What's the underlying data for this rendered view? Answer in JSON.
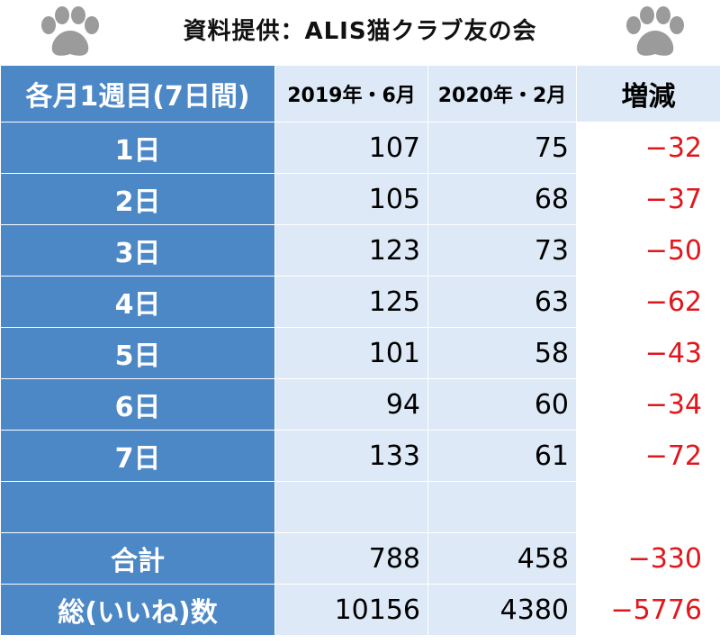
{
  "header": {
    "title": "資料提供：ALIS猫クラブ友の会",
    "left_icon": "paw-icon",
    "right_icon": "paw-icon"
  },
  "table": {
    "corner": "各月1週目(7日間)",
    "col_2019": "2019年・6月",
    "col_2020": "2020年・2月",
    "col_diff": "増減",
    "rows": [
      {
        "label": "1日",
        "v2019": "107",
        "v2020": "75",
        "diff": "−32"
      },
      {
        "label": "2日",
        "v2019": "105",
        "v2020": "68",
        "diff": "−37"
      },
      {
        "label": "3日",
        "v2019": "123",
        "v2020": "73",
        "diff": "−50"
      },
      {
        "label": "4日",
        "v2019": "125",
        "v2020": "63",
        "diff": "−62"
      },
      {
        "label": "5日",
        "v2019": "101",
        "v2020": "58",
        "diff": "−43"
      },
      {
        "label": "6日",
        "v2019": "94",
        "v2020": "60",
        "diff": "−34"
      },
      {
        "label": "7日",
        "v2019": "133",
        "v2020": "61",
        "diff": "−72"
      }
    ],
    "total": {
      "label": "合計",
      "v2019": "788",
      "v2020": "458",
      "diff": "−330"
    },
    "likes": {
      "label": "総(いいね)数",
      "v2019": "10156",
      "v2020": "4380",
      "diff": "−5776"
    }
  },
  "colors": {
    "row_header_blue": "#4c87c6",
    "cell_light_blue": "#dde9f6",
    "negative_red": "#e0171c"
  }
}
